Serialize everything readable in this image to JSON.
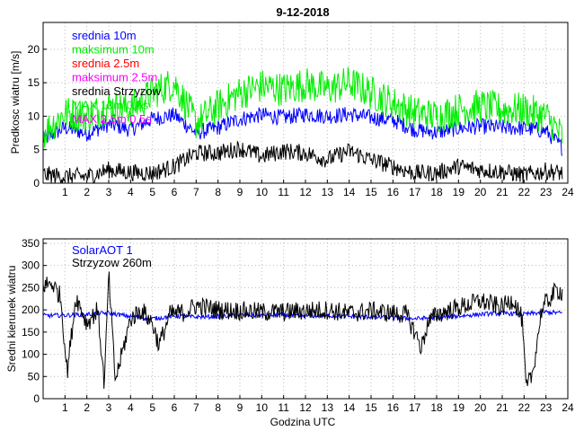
{
  "chart_title": "9-12-2018",
  "chart_data": [
    {
      "type": "line",
      "title": "9-12-2018",
      "xlabel": "",
      "ylabel": "Predkosc wiatru [m/s]",
      "xlim": [
        0,
        24
      ],
      "ylim": [
        0,
        24
      ],
      "x_ticks": [
        "1",
        "2",
        "3",
        "4",
        "5",
        "6",
        "7",
        "8",
        "9",
        "10",
        "11",
        "12",
        "13",
        "14",
        "15",
        "16",
        "17",
        "18",
        "19",
        "20",
        "21",
        "22",
        "23",
        "24"
      ],
      "y_ticks": [
        "0",
        "5",
        "10",
        "15",
        "20"
      ],
      "legend": [
        "srednia 10m",
        "maksimum 10m",
        "srednia 2.5m",
        "maksimum 2.5m",
        "srednia Strzyzow",
        "MAX 10m 0,5s",
        "MAX 2.5m 0,5s"
      ],
      "legend_colors": [
        "#0000ff",
        "#00ee00",
        "#ff0000",
        "#ff00ff",
        "#000000",
        "#00ee00",
        "#ff00ff"
      ],
      "series": [
        {
          "name": "srednia 10m",
          "color": "#0000ff",
          "x": [
            0,
            1,
            2,
            3,
            4,
            5,
            6,
            7,
            8,
            9,
            10,
            11,
            12,
            13,
            14,
            15,
            16,
            17,
            18,
            19,
            20,
            21,
            22,
            23,
            23.75
          ],
          "values": [
            6.5,
            8.3,
            7.4,
            8.8,
            8.0,
            9.6,
            10.2,
            7.5,
            8.3,
            9.6,
            10.2,
            9.8,
            10.3,
            10.0,
            10.3,
            9.8,
            9.4,
            8.0,
            7.6,
            8.2,
            8.5,
            8.3,
            8.2,
            7.8,
            5.3
          ]
        },
        {
          "name": "maksimum 10m",
          "color": "#00ee00",
          "x": [
            0,
            1,
            2,
            3,
            4,
            5,
            6,
            7,
            8,
            9,
            10,
            11,
            12,
            13,
            14,
            15,
            16,
            17,
            18,
            19,
            20,
            21,
            22,
            23,
            23.75
          ],
          "values": [
            7.5,
            10.5,
            10.0,
            11.5,
            11.0,
            13.5,
            15.0,
            9.0,
            11.5,
            13.5,
            14.5,
            14.0,
            14.8,
            14.0,
            15.0,
            13.5,
            12.0,
            10.5,
            10.0,
            11.0,
            11.5,
            11.0,
            11.0,
            10.0,
            7.0
          ]
        },
        {
          "name": "srednia 2.5m",
          "color": "#ff0000",
          "x": [
            0,
            24
          ],
          "values": [
            0,
            0
          ]
        },
        {
          "name": "maksimum 2.5m",
          "color": "#ff00ff",
          "x": [
            0,
            24
          ],
          "values": [
            0,
            0
          ]
        },
        {
          "name": "srednia Strzyzow",
          "color": "#000000",
          "x": [
            0,
            1,
            2,
            3,
            4,
            5,
            6,
            7,
            8,
            9,
            10,
            11,
            12,
            13,
            14,
            15,
            16,
            17,
            18,
            19,
            20,
            21,
            22,
            23,
            23.75
          ],
          "values": [
            1.3,
            1.0,
            1.0,
            2.0,
            1.6,
            1.5,
            2.5,
            4.5,
            4.5,
            5.2,
            4.0,
            4.8,
            4.5,
            3.5,
            4.8,
            3.5,
            2.5,
            1.5,
            1.5,
            2.5,
            2.0,
            1.7,
            1.2,
            1.8,
            1.5
          ]
        }
      ]
    },
    {
      "type": "line",
      "title": "",
      "xlabel": "Godzina UTC",
      "ylabel": "Sredni kierunek wiatru",
      "xlim": [
        0,
        24
      ],
      "ylim": [
        0,
        360
      ],
      "x_ticks": [
        "1",
        "2",
        "3",
        "4",
        "5",
        "6",
        "7",
        "8",
        "9",
        "10",
        "11",
        "12",
        "13",
        "14",
        "15",
        "16",
        "17",
        "18",
        "19",
        "20",
        "21",
        "22",
        "23",
        "24"
      ],
      "y_ticks": [
        "0",
        "50",
        "100",
        "150",
        "200",
        "250",
        "300",
        "350"
      ],
      "legend": [
        "SolarAOT 1",
        "Strzyzow 260m"
      ],
      "legend_colors": [
        "#0000ff",
        "#000000"
      ],
      "series": [
        {
          "name": "SolarAOT 1",
          "color": "#0000ff",
          "x": [
            0,
            1,
            2,
            3,
            4,
            5,
            6,
            7,
            8,
            9,
            10,
            11,
            12,
            13,
            14,
            15,
            16,
            17,
            18,
            19,
            20,
            21,
            22,
            23,
            23.75
          ],
          "values": [
            187,
            188,
            190,
            193,
            185,
            180,
            186,
            184,
            185,
            188,
            188,
            188,
            186,
            187,
            185,
            184,
            182,
            180,
            183,
            186,
            190,
            193,
            190,
            195,
            193
          ]
        },
        {
          "name": "Strzyzow 260m",
          "color": "#000000",
          "x": [
            0,
            0.4,
            0.8,
            1.1,
            1.5,
            2,
            2.5,
            2.8,
            3,
            3.3,
            4,
            4.5,
            5,
            5.3,
            5.8,
            6.5,
            7,
            8,
            9,
            10,
            11,
            12,
            13,
            14,
            15,
            16,
            16.6,
            17,
            17.3,
            17.6,
            18,
            19,
            20,
            21,
            21.5,
            21.9,
            22.1,
            22.4,
            22.8,
            23,
            23.5,
            23.75
          ],
          "values": [
            255,
            260,
            230,
            60,
            230,
            170,
            200,
            30,
            280,
            40,
            180,
            200,
            170,
            120,
            190,
            195,
            210,
            200,
            198,
            195,
            195,
            198,
            200,
            192,
            198,
            192,
            190,
            150,
            115,
            170,
            190,
            205,
            220,
            205,
            225,
            180,
            20,
            60,
            200,
            215,
            245,
            240
          ]
        }
      ]
    }
  ]
}
